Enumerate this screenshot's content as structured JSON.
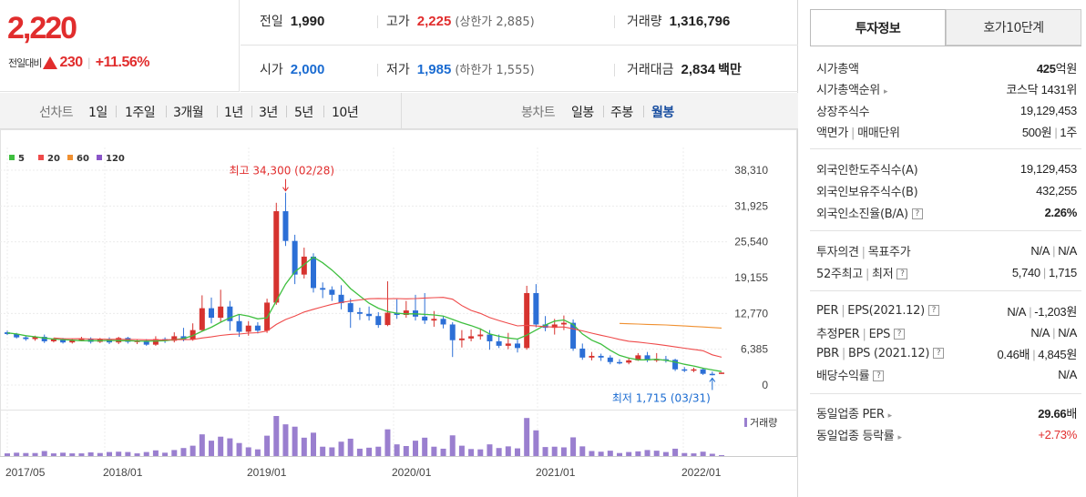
{
  "price": {
    "current": "2,220",
    "change_label": "전일대비",
    "change_value": "230",
    "change_pct": "+11.56%"
  },
  "quote": {
    "prev_label": "전일",
    "prev_value": "1,990",
    "high_label": "고가",
    "high_value": "2,225",
    "upper_limit": "(상한가 2,885)",
    "volume_label": "거래량",
    "volume_value": "1,316,796",
    "open_label": "시가",
    "open_value": "2,000",
    "low_label": "저가",
    "low_value": "1,985",
    "lower_limit": "(하한가 1,555)",
    "amount_label": "거래대금",
    "amount_value": "2,834",
    "amount_unit": "백만"
  },
  "period_bar": {
    "line_label": "선차트",
    "line_items": [
      "1일",
      "1주일",
      "3개월",
      "1년",
      "3년",
      "5년",
      "10년"
    ],
    "candle_label": "봉차트",
    "candle_items": [
      "일봉",
      "주봉",
      "월봉"
    ],
    "candle_selected": "월봉"
  },
  "chart_data": {
    "type": "candlestick",
    "legend": [
      {
        "name": "5",
        "color": "#3fbf3f"
      },
      {
        "name": "20",
        "color": "#ef4a4a"
      },
      {
        "name": "60",
        "color": "#f09030"
      },
      {
        "name": "120",
        "color": "#8a55c8"
      }
    ],
    "y_ticks": [
      "38,310",
      "31,925",
      "25,540",
      "19,155",
      "12,770",
      "6,385",
      "0"
    ],
    "ylim": [
      0,
      38310
    ],
    "x_ticks": [
      "2017/05",
      "2018/01",
      "2019/01",
      "2020/01",
      "2021/01",
      "2022/01"
    ],
    "annotations": {
      "high": "최고 34,300 (02/28)",
      "low": "최저 1,715 (03/31)"
    },
    "volume_label": "거래량",
    "candles": [
      {
        "o": 9400,
        "c": 9100,
        "h": 9700,
        "l": 8900
      },
      {
        "o": 9100,
        "c": 8500,
        "h": 9300,
        "l": 8300
      },
      {
        "o": 8500,
        "c": 8200,
        "h": 8800,
        "l": 7900
      },
      {
        "o": 8200,
        "c": 8600,
        "h": 8800,
        "l": 7900
      },
      {
        "o": 8600,
        "c": 7800,
        "h": 9000,
        "l": 7500
      },
      {
        "o": 7800,
        "c": 8200,
        "h": 8400,
        "l": 7600
      },
      {
        "o": 8200,
        "c": 7600,
        "h": 8400,
        "l": 7400
      },
      {
        "o": 7600,
        "c": 8000,
        "h": 8200,
        "l": 7400
      },
      {
        "o": 8000,
        "c": 8300,
        "h": 8600,
        "l": 7800
      },
      {
        "o": 8300,
        "c": 7700,
        "h": 8500,
        "l": 7400
      },
      {
        "o": 7700,
        "c": 8200,
        "h": 8400,
        "l": 7500
      },
      {
        "o": 8200,
        "c": 7600,
        "h": 8500,
        "l": 7300
      },
      {
        "o": 7600,
        "c": 8400,
        "h": 8600,
        "l": 7300
      },
      {
        "o": 8400,
        "c": 7700,
        "h": 8600,
        "l": 7400
      },
      {
        "o": 7700,
        "c": 7900,
        "h": 8100,
        "l": 7300
      },
      {
        "o": 7900,
        "c": 7200,
        "h": 8200,
        "l": 7000
      },
      {
        "o": 7200,
        "c": 8200,
        "h": 8700,
        "l": 7000
      },
      {
        "o": 8200,
        "c": 7900,
        "h": 8500,
        "l": 7500
      },
      {
        "o": 7900,
        "c": 8700,
        "h": 9400,
        "l": 7600
      },
      {
        "o": 8700,
        "c": 8100,
        "h": 10200,
        "l": 7800
      },
      {
        "o": 8100,
        "c": 9800,
        "h": 11000,
        "l": 7900
      },
      {
        "o": 9800,
        "c": 13700,
        "h": 16000,
        "l": 9500
      },
      {
        "o": 13700,
        "c": 12000,
        "h": 15600,
        "l": 11000
      },
      {
        "o": 12000,
        "c": 14000,
        "h": 17000,
        "l": 11200
      },
      {
        "o": 14000,
        "c": 11400,
        "h": 15000,
        "l": 9700
      },
      {
        "o": 11400,
        "c": 9500,
        "h": 12500,
        "l": 8600
      },
      {
        "o": 9500,
        "c": 10600,
        "h": 11400,
        "l": 8800
      },
      {
        "o": 10600,
        "c": 9700,
        "h": 11200,
        "l": 9200
      },
      {
        "o": 9700,
        "c": 14700,
        "h": 15400,
        "l": 9300
      },
      {
        "o": 14700,
        "c": 31000,
        "h": 32500,
        "l": 14300
      },
      {
        "o": 31000,
        "c": 25700,
        "h": 34300,
        "l": 24800
      },
      {
        "o": 25700,
        "c": 19700,
        "h": 26800,
        "l": 18000
      },
      {
        "o": 19700,
        "c": 22900,
        "h": 24500,
        "l": 19000
      },
      {
        "o": 22900,
        "c": 17300,
        "h": 23500,
        "l": 16500
      },
      {
        "o": 17300,
        "c": 17000,
        "h": 18300,
        "l": 15500
      },
      {
        "o": 17000,
        "c": 16100,
        "h": 17600,
        "l": 15000
      },
      {
        "o": 16100,
        "c": 14600,
        "h": 17800,
        "l": 13500
      },
      {
        "o": 14600,
        "c": 13000,
        "h": 15400,
        "l": 10200
      },
      {
        "o": 13000,
        "c": 12700,
        "h": 13800,
        "l": 11600
      },
      {
        "o": 12700,
        "c": 12300,
        "h": 14000,
        "l": 11500
      },
      {
        "o": 12300,
        "c": 10700,
        "h": 13000,
        "l": 10200
      },
      {
        "o": 10700,
        "c": 12900,
        "h": 18500,
        "l": 10500
      },
      {
        "o": 12900,
        "c": 12500,
        "h": 15300,
        "l": 11800
      },
      {
        "o": 12500,
        "c": 13300,
        "h": 15000,
        "l": 12000
      },
      {
        "o": 13300,
        "c": 12200,
        "h": 16100,
        "l": 11500
      },
      {
        "o": 12200,
        "c": 11500,
        "h": 16400,
        "l": 10900
      },
      {
        "o": 11500,
        "c": 11800,
        "h": 13200,
        "l": 10400
      },
      {
        "o": 11800,
        "c": 10800,
        "h": 12300,
        "l": 10100
      },
      {
        "o": 10800,
        "c": 8000,
        "h": 11200,
        "l": 5000
      },
      {
        "o": 8000,
        "c": 8300,
        "h": 9800,
        "l": 6700
      },
      {
        "o": 8300,
        "c": 8700,
        "h": 9900,
        "l": 7800
      },
      {
        "o": 8700,
        "c": 9000,
        "h": 10100,
        "l": 8100
      },
      {
        "o": 9000,
        "c": 7800,
        "h": 9800,
        "l": 6300
      },
      {
        "o": 7800,
        "c": 7000,
        "h": 9000,
        "l": 6600
      },
      {
        "o": 7000,
        "c": 7400,
        "h": 9300,
        "l": 6400
      },
      {
        "o": 7400,
        "c": 6600,
        "h": 8100,
        "l": 5800
      },
      {
        "o": 6600,
        "c": 16400,
        "h": 17700,
        "l": 6300
      },
      {
        "o": 16400,
        "c": 10800,
        "h": 18000,
        "l": 10300
      },
      {
        "o": 10800,
        "c": 10200,
        "h": 12300,
        "l": 9600
      },
      {
        "o": 10200,
        "c": 10800,
        "h": 11800,
        "l": 9000
      },
      {
        "o": 10800,
        "c": 11100,
        "h": 12400,
        "l": 9800
      },
      {
        "o": 11100,
        "c": 6500,
        "h": 11700,
        "l": 6100
      },
      {
        "o": 6500,
        "c": 4900,
        "h": 7400,
        "l": 4500
      },
      {
        "o": 4900,
        "c": 5200,
        "h": 5900,
        "l": 4400
      },
      {
        "o": 5200,
        "c": 4900,
        "h": 5600,
        "l": 4300
      },
      {
        "o": 4900,
        "c": 4100,
        "h": 5300,
        "l": 3700
      },
      {
        "o": 4100,
        "c": 4000,
        "h": 4600,
        "l": 3700
      },
      {
        "o": 4000,
        "c": 4400,
        "h": 4900,
        "l": 3700
      },
      {
        "o": 4400,
        "c": 5300,
        "h": 5700,
        "l": 4300
      },
      {
        "o": 5300,
        "c": 4400,
        "h": 5900,
        "l": 4100
      },
      {
        "o": 4400,
        "c": 4600,
        "h": 5700,
        "l": 4100
      },
      {
        "o": 4600,
        "c": 4500,
        "h": 5200,
        "l": 4000
      },
      {
        "o": 4500,
        "c": 2800,
        "h": 4700,
        "l": 2500
      },
      {
        "o": 2800,
        "c": 2600,
        "h": 3200,
        "l": 2300
      },
      {
        "o": 2600,
        "c": 2800,
        "h": 3100,
        "l": 2300
      },
      {
        "o": 2800,
        "c": 2000,
        "h": 3100,
        "l": 1800
      },
      {
        "o": 2000,
        "c": 1900,
        "h": 2400,
        "l": 1715
      },
      {
        "o": 1990,
        "c": 2220,
        "h": 2225,
        "l": 1985
      }
    ],
    "ma5": [
      9300,
      9100,
      8800,
      8600,
      8400,
      8200,
      8100,
      8000,
      7900,
      7900,
      7900,
      7950,
      7900,
      7900,
      7850,
      7800,
      7850,
      7900,
      8100,
      8300,
      8800,
      9600,
      10300,
      11200,
      12000,
      12600,
      12300,
      11800,
      12000,
      15000,
      18000,
      20200,
      21500,
      22800,
      21800,
      20500,
      19000,
      17200,
      15900,
      14600,
      13700,
      13100,
      12800,
      12700,
      12700,
      12600,
      12500,
      12300,
      11700,
      11100,
      10600,
      10000,
      9100,
      8700,
      8400,
      8200,
      8900,
      9800,
      10700,
      11400,
      11600,
      10800,
      9100,
      8000,
      7300,
      6200,
      5300,
      4800,
      4500,
      4500,
      4600,
      4400,
      4100,
      3700,
      3400,
      3000,
      2700,
      2400
    ]
  },
  "tabs": {
    "info": "투자정보",
    "ask": "호가10단계"
  },
  "invest": {
    "mktcap_label": "시가총액",
    "mktcap_value": "425",
    "mktcap_unit": "억원",
    "rank_label": "시가총액순위",
    "rank_value": "코스닥 1431위",
    "shares_label": "상장주식수",
    "shares_value": "19,129,453",
    "par_label": "액면가",
    "trade_unit_label": "매매단위",
    "par_value": "500원",
    "trade_unit_value": "1주",
    "foreign_limit_label": "외국인한도주식수(A)",
    "foreign_limit_value": "19,129,453",
    "foreign_hold_label": "외국인보유주식수(B)",
    "foreign_hold_value": "432,255",
    "foreign_ratio_label": "외국인소진율(B/A)",
    "foreign_ratio_value": "2.26%",
    "opinion_label": "투자의견",
    "target_label": "목표주가",
    "opinion_value": "N/A",
    "target_value": "N/A",
    "w52_high_label": "52주최고",
    "w52_low_label": "최저",
    "w52_high_value": "5,740",
    "w52_low_value": "1,715",
    "per_label": "PER",
    "eps_label": "EPS(2021.12)",
    "per_value": "N/A",
    "eps_value": "-1,203원",
    "eper_label": "추정PER",
    "eeps_label": "EPS",
    "eper_value": "N/A",
    "eeps_value": "N/A",
    "pbr_label": "PBR",
    "bps_label": "BPS (2021.12)",
    "pbr_value": "0.46배",
    "bps_value": "4,845원",
    "div_label": "배당수익률",
    "div_value": "N/A",
    "ind_per_label": "동일업종 PER",
    "ind_per_value": "29.66",
    "ind_per_unit": "배",
    "ind_chg_label": "동일업종 등락률",
    "ind_chg_value": "+2.73%"
  }
}
